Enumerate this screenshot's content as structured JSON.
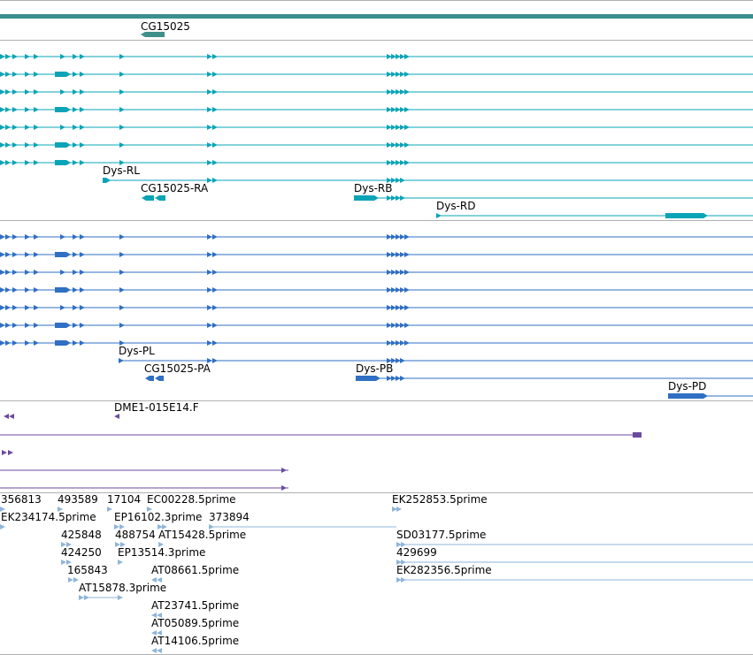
{
  "colors": {
    "scaffold": "#3a8f8f",
    "gene": "#3f8f8a",
    "transcript": "#0aa4b7",
    "protein": "#2f6fc4",
    "cdna": "#6b4aa0",
    "est": "#8fb5d8",
    "separator": "#b0b0b0",
    "text": "#000000"
  },
  "tracks": {
    "gene": {
      "labels": [
        "CG15025"
      ]
    },
    "transcripts": {
      "labels": [
        "Dys-RL",
        "CG15025-RA",
        "Dys-RB",
        "Dys-RD"
      ]
    },
    "proteins": {
      "labels": [
        "Dys-PL",
        "CG15025-PA",
        "Dys-PB",
        "Dys-PD"
      ]
    },
    "cdna": {
      "labels": [
        "DME1-015E14.F"
      ]
    },
    "est": {
      "labels": [
        "356813",
        "493589",
        "17104",
        "EC00228.5prime",
        "EK252853.5prime",
        "EK234174.5prime",
        "EP16102.3prime",
        "373894",
        "425848",
        "488754",
        "AT15428.5prime",
        "SD03177.5prime",
        "424250",
        "EP13514.3prime",
        "429699",
        "165843",
        "AT08661.5prime",
        "EK282356.5prime",
        "AT15878.3prime",
        "AT23741.5prime",
        "AT05089.5prime",
        "AT14106.5prime"
      ]
    }
  }
}
